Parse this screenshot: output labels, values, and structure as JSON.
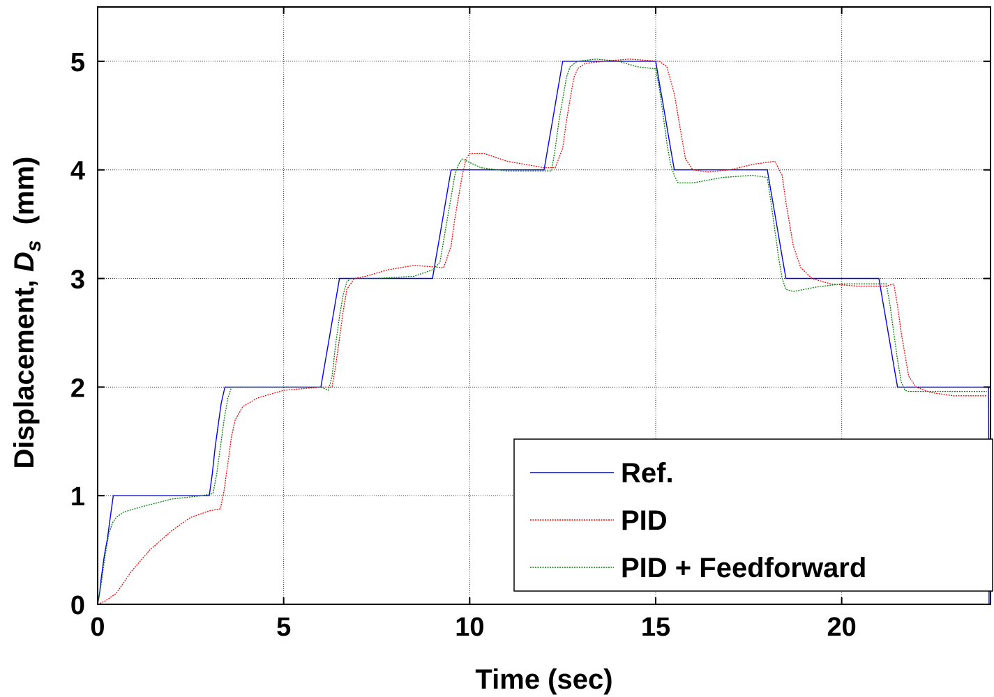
{
  "chart_data": {
    "type": "line",
    "xlabel": "Time (sec)",
    "ylabel": {
      "main": "Displacement, ",
      "symbol": "D",
      "subscript": "s",
      "unit": "  (mm)"
    },
    "xlim": [
      0,
      24
    ],
    "ylim": [
      0,
      5.5
    ],
    "xticks": [
      0,
      5,
      10,
      15,
      20
    ],
    "yticks": [
      0,
      1,
      2,
      3,
      4,
      5
    ],
    "grid": true,
    "legend_position": "bottom-right",
    "series": [
      {
        "name": "Ref.",
        "color": "#0000ff",
        "style": "solid",
        "x": [
          0,
          0.05,
          0.1,
          0.18,
          0.26,
          0.34,
          0.42,
          3.0,
          3.08,
          3.16,
          3.24,
          3.32,
          3.42,
          6.0,
          6.1,
          6.2,
          6.3,
          6.4,
          6.5,
          9.0,
          9.1,
          9.2,
          9.3,
          9.4,
          9.5,
          12.0,
          12.1,
          12.2,
          12.3,
          12.4,
          12.5,
          15.0,
          15.1,
          15.2,
          15.3,
          15.4,
          15.5,
          18.0,
          18.1,
          18.2,
          18.3,
          18.4,
          18.5,
          21.0,
          21.1,
          21.2,
          21.3,
          21.4,
          21.5,
          23.95,
          23.96
        ],
        "y": [
          0,
          0.1,
          0.25,
          0.45,
          0.6,
          0.8,
          1.0,
          1.0,
          1.2,
          1.45,
          1.65,
          1.85,
          2.0,
          2.0,
          2.2,
          2.4,
          2.6,
          2.8,
          3.0,
          3.0,
          3.2,
          3.4,
          3.6,
          3.8,
          4.0,
          4.0,
          4.2,
          4.4,
          4.6,
          4.8,
          5.0,
          5.0,
          4.8,
          4.6,
          4.4,
          4.2,
          4.0,
          4.0,
          3.8,
          3.6,
          3.4,
          3.2,
          3.0,
          3.0,
          2.8,
          2.6,
          2.4,
          2.2,
          2.0,
          2.0,
          0.0
        ]
      },
      {
        "name": "PID",
        "color": "#ff0000",
        "style": "dotted",
        "x": [
          0,
          0.2,
          0.5,
          0.9,
          1.4,
          2.0,
          2.5,
          3.0,
          3.3,
          3.4,
          3.5,
          3.6,
          3.7,
          3.9,
          4.3,
          5.0,
          6.0,
          6.3,
          6.4,
          6.5,
          6.6,
          6.7,
          6.9,
          7.2,
          7.8,
          8.5,
          9.3,
          9.5,
          9.6,
          9.7,
          9.8,
          9.9,
          10.0,
          10.4,
          11.0,
          12.0,
          12.3,
          12.5,
          12.6,
          12.7,
          12.8,
          12.9,
          13.1,
          13.6,
          14.3,
          15.1,
          15.3,
          15.5,
          15.6,
          15.7,
          15.8,
          16.0,
          16.4,
          17.0,
          17.6,
          18.2,
          18.4,
          18.5,
          18.6,
          18.7,
          18.9,
          19.2,
          19.7,
          20.4,
          21.2,
          21.4,
          21.5,
          21.6,
          21.7,
          21.8,
          22.0,
          22.4,
          23.0,
          23.9
        ],
        "y": [
          0,
          0.03,
          0.1,
          0.3,
          0.5,
          0.68,
          0.8,
          0.86,
          0.88,
          1.05,
          1.3,
          1.55,
          1.7,
          1.82,
          1.9,
          1.97,
          2.0,
          2.0,
          2.2,
          2.45,
          2.7,
          2.9,
          3.0,
          3.02,
          3.08,
          3.12,
          3.1,
          3.3,
          3.55,
          3.75,
          3.95,
          4.1,
          4.15,
          4.15,
          4.08,
          4.02,
          4.02,
          4.2,
          4.45,
          4.65,
          4.85,
          4.93,
          4.98,
          5.0,
          5.02,
          5.0,
          4.95,
          4.7,
          4.5,
          4.3,
          4.1,
          4.0,
          3.98,
          4.0,
          4.05,
          4.08,
          3.95,
          3.7,
          3.5,
          3.3,
          3.1,
          3.0,
          2.95,
          2.93,
          2.93,
          2.95,
          2.75,
          2.5,
          2.3,
          2.1,
          2.0,
          1.95,
          1.92,
          1.92
        ]
      },
      {
        "name": "PID + Feedforward",
        "color": "#008000",
        "style": "dotted",
        "x": [
          0,
          0.1,
          0.2,
          0.3,
          0.4,
          0.5,
          0.7,
          1.2,
          2.0,
          2.8,
          3.1,
          3.2,
          3.3,
          3.4,
          3.5,
          3.6,
          6.0,
          6.2,
          6.3,
          6.4,
          6.5,
          6.6,
          6.7,
          6.8,
          7.5,
          8.5,
          9.0,
          9.2,
          9.3,
          9.4,
          9.5,
          9.6,
          9.7,
          9.8,
          10.3,
          11.0,
          12.2,
          12.3,
          12.4,
          12.5,
          12.6,
          12.7,
          12.9,
          13.4,
          14.0,
          14.5,
          15.0,
          15.1,
          15.2,
          15.3,
          15.4,
          15.5,
          15.6,
          16.0,
          16.8,
          17.6,
          18.0,
          18.1,
          18.2,
          18.3,
          18.4,
          18.5,
          18.7,
          19.3,
          20.0,
          21.2,
          21.3,
          21.4,
          21.5,
          21.6,
          21.7,
          21.8,
          22.5,
          23.9
        ],
        "y": [
          0,
          0.2,
          0.45,
          0.65,
          0.75,
          0.8,
          0.85,
          0.9,
          0.97,
          1.0,
          1.02,
          1.2,
          1.45,
          1.7,
          1.9,
          2.0,
          2.0,
          1.97,
          2.1,
          2.4,
          2.65,
          2.85,
          2.97,
          3.0,
          3.0,
          3.02,
          3.08,
          3.15,
          3.35,
          3.55,
          3.75,
          3.95,
          4.05,
          4.1,
          4.02,
          3.99,
          3.99,
          4.2,
          4.45,
          4.65,
          4.85,
          4.95,
          5.0,
          5.02,
          5.0,
          4.95,
          4.93,
          4.75,
          4.5,
          4.25,
          4.05,
          3.95,
          3.88,
          3.88,
          3.93,
          3.95,
          3.93,
          3.7,
          3.45,
          3.2,
          3.0,
          2.9,
          2.88,
          2.92,
          2.95,
          2.95,
          2.75,
          2.5,
          2.25,
          2.05,
          1.97,
          1.96,
          1.96,
          1.96
        ]
      }
    ]
  }
}
